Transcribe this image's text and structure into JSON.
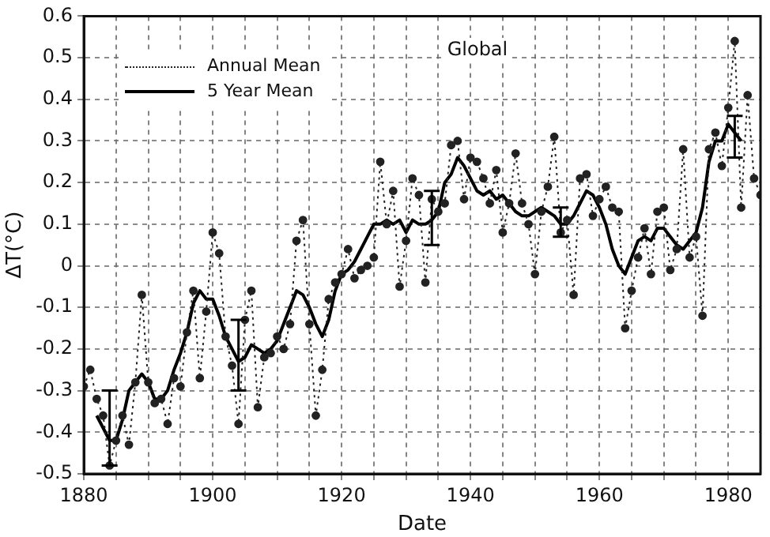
{
  "chart_data": {
    "type": "line",
    "annotations": [
      "Global"
    ],
    "xlabel": "Date",
    "ylabel": "ΔT(°C)",
    "x": [
      1880,
      1881,
      1882,
      1883,
      1884,
      1885,
      1886,
      1887,
      1888,
      1889,
      1890,
      1891,
      1892,
      1893,
      1894,
      1895,
      1896,
      1897,
      1898,
      1899,
      1900,
      1901,
      1902,
      1903,
      1904,
      1905,
      1906,
      1907,
      1908,
      1909,
      1910,
      1911,
      1912,
      1913,
      1914,
      1915,
      1916,
      1917,
      1918,
      1919,
      1920,
      1921,
      1922,
      1923,
      1924,
      1925,
      1926,
      1927,
      1928,
      1929,
      1930,
      1931,
      1932,
      1933,
      1934,
      1935,
      1936,
      1937,
      1938,
      1939,
      1940,
      1941,
      1942,
      1943,
      1944,
      1945,
      1946,
      1947,
      1948,
      1949,
      1950,
      1951,
      1952,
      1953,
      1954,
      1955,
      1956,
      1957,
      1958,
      1959,
      1960,
      1961,
      1962,
      1963,
      1964,
      1965,
      1966,
      1967,
      1968,
      1969,
      1970,
      1971,
      1972,
      1973,
      1974,
      1975,
      1976,
      1977,
      1978,
      1979,
      1980,
      1981,
      1982,
      1983,
      1984,
      1985
    ],
    "series": [
      {
        "name": "Annual Mean",
        "color": "#222222",
        "marker": "circle",
        "line_style": "dotted",
        "values": [
          -0.29,
          -0.25,
          -0.32,
          -0.36,
          -0.48,
          -0.42,
          -0.36,
          -0.43,
          -0.28,
          -0.07,
          -0.28,
          -0.33,
          -0.32,
          -0.38,
          -0.27,
          -0.29,
          -0.16,
          -0.06,
          -0.27,
          -0.11,
          0.08,
          0.03,
          -0.17,
          -0.24,
          -0.38,
          -0.13,
          -0.06,
          -0.34,
          -0.22,
          -0.21,
          -0.17,
          -0.2,
          -0.14,
          0.06,
          0.11,
          -0.14,
          -0.36,
          -0.25,
          -0.08,
          -0.04,
          -0.02,
          0.04,
          -0.03,
          -0.01,
          0,
          0.02,
          0.25,
          0.1,
          0.18,
          -0.05,
          0.06,
          0.21,
          0.17,
          -0.04,
          0.16,
          0.13,
          0.15,
          0.29,
          0.3,
          0.16,
          0.26,
          0.25,
          0.21,
          0.15,
          0.23,
          0.08,
          0.15,
          0.27,
          0.15,
          0.1,
          -0.02,
          0.13,
          0.19,
          0.31,
          0.08,
          0.11,
          -0.07,
          0.21,
          0.22,
          0.12,
          0.16,
          0.19,
          0.14,
          0.13,
          -0.15,
          -0.06,
          0.02,
          0.09,
          -0.02,
          0.13,
          0.14,
          -0.01,
          0.04,
          0.28,
          0.02,
          0.07,
          -0.12,
          0.28,
          0.32,
          0.24,
          0.38,
          0.54,
          0.14,
          0.41,
          0.21,
          0.17
        ]
      },
      {
        "name": "5 Year Mean",
        "color": "#000000",
        "marker": "none",
        "line_style": "solid",
        "x": [
          1882,
          1883,
          1884,
          1885,
          1886,
          1887,
          1888,
          1889,
          1890,
          1891,
          1892,
          1893,
          1894,
          1895,
          1896,
          1897,
          1898,
          1899,
          1900,
          1901,
          1902,
          1903,
          1904,
          1905,
          1906,
          1907,
          1908,
          1909,
          1910,
          1911,
          1912,
          1913,
          1914,
          1915,
          1916,
          1917,
          1918,
          1919,
          1920,
          1921,
          1922,
          1923,
          1924,
          1925,
          1926,
          1927,
          1928,
          1929,
          1930,
          1931,
          1932,
          1933,
          1934,
          1935,
          1936,
          1937,
          1938,
          1939,
          1940,
          1941,
          1942,
          1943,
          1944,
          1945,
          1946,
          1947,
          1948,
          1949,
          1950,
          1951,
          1952,
          1953,
          1954,
          1955,
          1956,
          1957,
          1958,
          1959,
          1960,
          1961,
          1962,
          1963,
          1964,
          1965,
          1966,
          1967,
          1968,
          1969,
          1970,
          1971,
          1972,
          1973,
          1974,
          1975,
          1976,
          1977,
          1978,
          1979,
          1980,
          1981,
          1982
        ],
        "values": [
          -0.36,
          -0.39,
          -0.42,
          -0.42,
          -0.37,
          -0.3,
          -0.28,
          -0.26,
          -0.28,
          -0.32,
          -0.32,
          -0.3,
          -0.25,
          -0.21,
          -0.16,
          -0.09,
          -0.06,
          -0.08,
          -0.08,
          -0.12,
          -0.17,
          -0.2,
          -0.23,
          -0.22,
          -0.19,
          -0.2,
          -0.21,
          -0.2,
          -0.18,
          -0.14,
          -0.1,
          -0.06,
          -0.07,
          -0.1,
          -0.14,
          -0.17,
          -0.13,
          -0.06,
          -0.02,
          -0.01,
          0.01,
          0.04,
          0.07,
          0.1,
          0.1,
          0.11,
          0.1,
          0.11,
          0.08,
          0.11,
          0.1,
          0.1,
          0.11,
          0.13,
          0.2,
          0.22,
          0.26,
          0.24,
          0.21,
          0.18,
          0.17,
          0.18,
          0.16,
          0.17,
          0.15,
          0.13,
          0.12,
          0.12,
          0.13,
          0.14,
          0.13,
          0.12,
          0.1,
          0.1,
          0.12,
          0.15,
          0.18,
          0.17,
          0.14,
          0.1,
          0.04,
          0,
          -0.02,
          0.02,
          0.06,
          0.07,
          0.06,
          0.09,
          0.09,
          0.07,
          0.05,
          0.04,
          0.06,
          0.08,
          0.14,
          0.25,
          0.3,
          0.3,
          0.34,
          0.32,
          0.3
        ],
        "errors": [
          null,
          null,
          [
            -0.48,
            -0.3
          ],
          null,
          null,
          null,
          null,
          null,
          null,
          null,
          null,
          null,
          null,
          null,
          null,
          null,
          null,
          null,
          null,
          null,
          null,
          null,
          [
            -0.3,
            -0.13
          ],
          null,
          null,
          null,
          null,
          null,
          null,
          null,
          null,
          null,
          null,
          null,
          null,
          null,
          null,
          null,
          null,
          null,
          null,
          null,
          null,
          null,
          null,
          null,
          null,
          null,
          null,
          null,
          null,
          null,
          [
            0.05,
            0.18
          ],
          null,
          null,
          null,
          null,
          null,
          null,
          null,
          null,
          null,
          null,
          null,
          null,
          null,
          null,
          null,
          null,
          null,
          null,
          null,
          [
            0.07,
            0.14
          ],
          null,
          null,
          null,
          null,
          null,
          null,
          null,
          null,
          null,
          null,
          null,
          null,
          null,
          null,
          null,
          null,
          null,
          null,
          null,
          null,
          null,
          null,
          null,
          null,
          null,
          null,
          [
            0.26,
            0.36
          ],
          null
        ]
      }
    ],
    "xlim": [
      1880,
      1985
    ],
    "xticks": [
      1880,
      {
        "value": 1885,
        "label": null
      },
      1900,
      {
        "value": 1890,
        "label": null
      },
      {
        "value": 1895,
        "label": null
      },
      {
        "value": 1905,
        "label": null
      },
      {
        "value": 1910,
        "label": null
      },
      {
        "value": 1915,
        "label": null
      },
      1920,
      {
        "value": 1925,
        "label": null
      },
      {
        "value": 1930,
        "label": null
      },
      {
        "value": 1935,
        "label": null
      },
      1940,
      {
        "value": 1945,
        "label": null
      },
      {
        "value": 1950,
        "label": null
      },
      {
        "value": 1955,
        "label": null
      },
      1960,
      {
        "value": 1965,
        "label": null
      },
      {
        "value": 1970,
        "label": null
      },
      {
        "value": 1975,
        "label": null
      },
      1980
    ],
    "ylim": [
      -0.5,
      0.6
    ],
    "yticks": [
      -0.5,
      -0.4,
      -0.3,
      -0.2,
      -0.1,
      0,
      0.1,
      0.2,
      0.3,
      0.4,
      0.5,
      0.6
    ],
    "grid": true,
    "legend": "top left"
  }
}
